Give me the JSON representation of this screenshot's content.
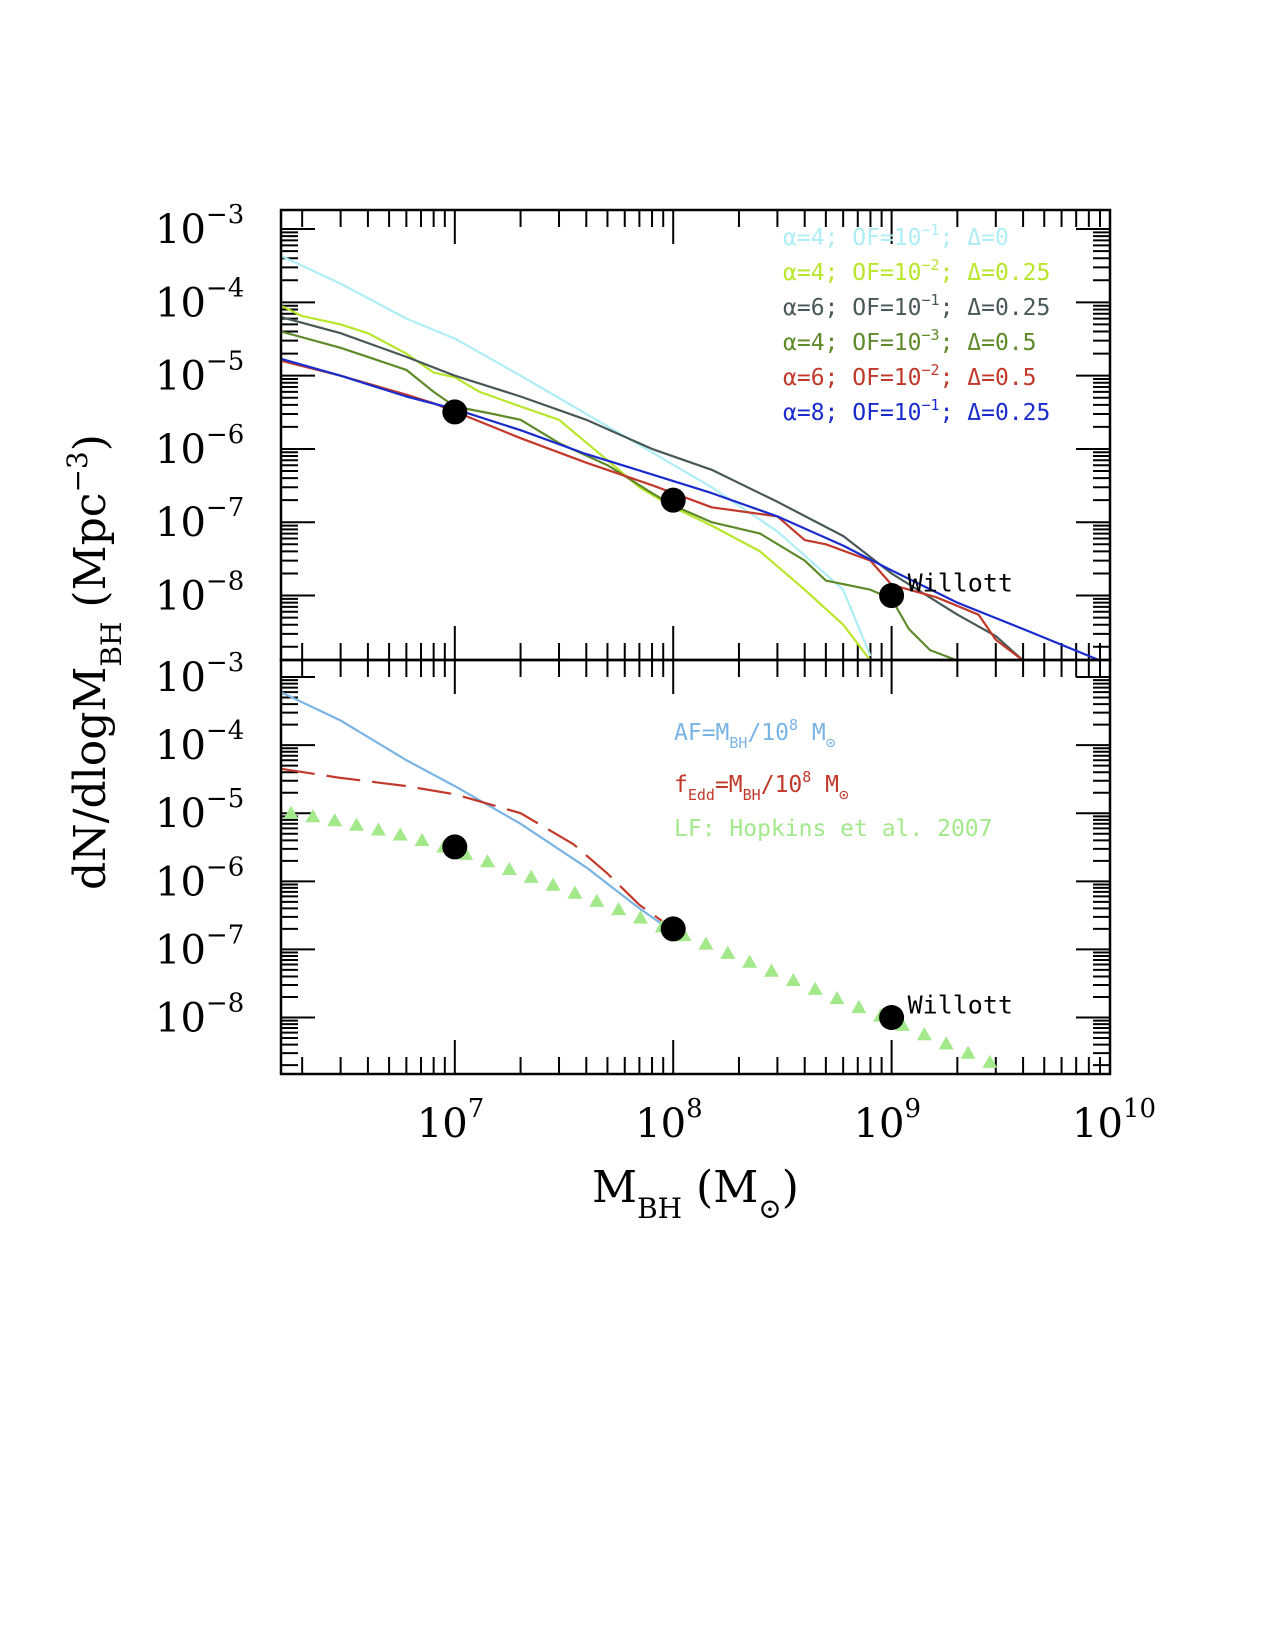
{
  "chart_data": {
    "type": "line",
    "xlabel": "M_BH (M⊙)",
    "ylabel": "dN/dlogM_BH (Mpc^-3)",
    "x_scale": "log",
    "y_scale": "log",
    "xlim": [
      1600000,
      10000000000
    ],
    "x_tick_labels": [
      {
        "base": "10",
        "exp": "7",
        "value": 10000000
      },
      {
        "base": "10",
        "exp": "8",
        "value": 100000000
      },
      {
        "base": "10",
        "exp": "9",
        "value": 1000000000
      },
      {
        "base": "10",
        "exp": "10",
        "value": 10000000000
      }
    ],
    "panels": [
      {
        "name": "top",
        "ylim": [
          1.32e-09,
          0.00182
        ],
        "y_tick_labels": [
          {
            "base": "10",
            "exp": "−3",
            "value": 0.001
          },
          {
            "base": "10",
            "exp": "−4",
            "value": 0.0001
          },
          {
            "base": "10",
            "exp": "−5",
            "value": 1e-05
          },
          {
            "base": "10",
            "exp": "−6",
            "value": 1e-06
          },
          {
            "base": "10",
            "exp": "−7",
            "value": 1e-07
          },
          {
            "base": "10",
            "exp": "−8",
            "value": 1e-08
          }
        ],
        "series": [
          {
            "name": "α=4; OF=10⁻¹; Δ=0",
            "color": "#aeeef4",
            "style": "solid",
            "x": [
              1600000,
              3000000,
              6000000,
              10000000,
              20000000,
              40000000,
              80000000,
              150000000,
              300000000,
              600000000,
              800000000
            ],
            "y": [
              0.00043,
              0.00018,
              6e-05,
              3.2e-05,
              1e-05,
              3e-06,
              9e-07,
              3e-07,
              7.5e-08,
              1.2e-08,
              1.5e-09
            ]
          },
          {
            "name": "α=4; OF=10⁻²; Δ=0.25",
            "color": "#b7e62a",
            "style": "solid",
            "x": [
              1600000,
              2000000,
              3000000,
              4000000,
              6000000,
              8000000,
              10000000,
              13000000,
              20000000,
              30000000,
              50000000,
              70000000,
              100000000,
              150000000,
              250000000,
              400000000,
              600000000,
              800000000
            ],
            "y": [
              9e-05,
              6.5e-05,
              5e-05,
              3.8e-05,
              2e-05,
              1.1e-05,
              9.5e-06,
              6e-06,
              3.8e-06,
              2.5e-06,
              7e-07,
              3e-07,
              1.6e-07,
              9e-08,
              4e-08,
              1.2e-08,
              4e-09,
              1.3e-09
            ]
          },
          {
            "name": "α=6; OF=10⁻¹; Δ=0.25",
            "color": "#485858",
            "style": "solid",
            "x": [
              1600000,
              3000000,
              6000000,
              10000000,
              20000000,
              40000000,
              80000000,
              150000000,
              300000000,
              600000000,
              1000000000,
              2000000000,
              3000000000,
              4000000000
            ],
            "y": [
              6.3e-05,
              3.8e-05,
              1.8e-05,
              1e-05,
              5.2e-06,
              2.5e-06,
              1e-06,
              5.2e-07,
              1.9e-07,
              6.5e-08,
              2e-08,
              5.5e-09,
              2.8e-09,
              1.3e-09
            ]
          },
          {
            "name": "α=4; OF=10⁻³; Δ=0.5",
            "color": "#5e8a2a",
            "style": "solid",
            "x": [
              1600000,
              3000000,
              6000000,
              8000000,
              10000000,
              15000000,
              20000000,
              30000000,
              50000000,
              80000000,
              100000000,
              150000000,
              250000000,
              400000000,
              500000000,
              800000000,
              1000000000,
              1200000000,
              1500000000,
              2000000000
            ],
            "y": [
              4e-05,
              2.4e-05,
              1.2e-05,
              6e-06,
              3.8e-06,
              3e-06,
              2.5e-06,
              1.2e-06,
              6e-07,
              2.5e-07,
              1.7e-07,
              1e-07,
              7e-08,
              3e-08,
              1.6e-08,
              1.2e-08,
              9e-09,
              3.5e-09,
              1.8e-09,
              1.3e-09
            ]
          },
          {
            "name": "α=6; OF=10⁻²; Δ=0.5",
            "color": "#c0392b",
            "style": "solid",
            "x": [
              1600000,
              3000000,
              6000000,
              8000000,
              12000000,
              20000000,
              40000000,
              80000000,
              150000000,
              300000000,
              400000000,
              500000000,
              800000000,
              1000000000,
              1600000000,
              2500000000,
              3000000000,
              4000000000
            ],
            "y": [
              1.6e-05,
              1e-05,
              5.5e-06,
              4.2e-06,
              2.6e-06,
              1.4e-06,
              6.5e-07,
              3.2e-07,
              1.6e-07,
              1.2e-07,
              5.7e-08,
              5e-08,
              3e-08,
              1.4e-08,
              9.5e-09,
              5.5e-09,
              2.5e-09,
              1.3e-09
            ]
          },
          {
            "name": "α=8; OF=10⁻¹; Δ=0.25",
            "color": "#1a2ccc",
            "style": "solid",
            "x": [
              1600000,
              3000000,
              6000000,
              10000000,
              20000000,
              40000000,
              80000000,
              150000000,
              300000000,
              600000000,
              1000000000,
              2000000000,
              4000000000,
              9000000000
            ],
            "y": [
              1.7e-05,
              1e-05,
              5.2e-06,
              3.5e-06,
              1.8e-06,
              8.5e-07,
              4.5e-07,
              2.5e-07,
              1.2e-07,
              4.8e-08,
              2.2e-08,
              8e-09,
              3.5e-09,
              1.3e-09
            ]
          }
        ],
        "points": {
          "x": [
            10000000,
            100000000,
            1000000000
          ],
          "y": [
            3.2e-06,
            2e-07,
            1e-08
          ],
          "label": "Willott"
        }
      },
      {
        "name": "bottom",
        "ylim": [
          1.48e-09,
          0.00178
        ],
        "y_tick_labels": [
          {
            "base": "10",
            "exp": "−3",
            "value": 0.001
          },
          {
            "base": "10",
            "exp": "−4",
            "value": 0.0001
          },
          {
            "base": "10",
            "exp": "−5",
            "value": 1e-05
          },
          {
            "base": "10",
            "exp": "−6",
            "value": 1e-06
          },
          {
            "base": "10",
            "exp": "−7",
            "value": 1e-07
          },
          {
            "base": "10",
            "exp": "−8",
            "value": 1e-08
          }
        ],
        "legend": [
          {
            "text_parts": [
              "AF=M",
              "BH",
              "/10",
              "8",
              " M",
              "⊙"
            ],
            "color": "#79b4e4"
          },
          {
            "text_parts": [
              "f",
              "Edd",
              "=M",
              "BH",
              "/10",
              "8",
              " M",
              "⊙"
            ],
            "color": "#c0392b"
          },
          {
            "text_parts": [
              "LF: Hopkins et al. 2007"
            ],
            "color": "#a3e88a"
          }
        ],
        "series": [
          {
            "name": "AF=M_BH/10^8 M⊙",
            "color": "#79b4e4",
            "style": "solid",
            "x": [
              1600000,
              3000000,
              6000000,
              10000000,
              20000000,
              40000000,
              70000000,
              100000000
            ],
            "y": [
              0.0006,
              0.00023,
              6e-05,
              2.5e-05,
              7e-06,
              1.6e-06,
              4e-07,
              1.8e-07
            ]
          },
          {
            "name": "f_Edd=M_BH/10^8 M⊙",
            "color": "#c0392b",
            "style": "dashed",
            "x": [
              1600000,
              3000000,
              6000000,
              10000000,
              20000000,
              35000000,
              50000000,
              70000000,
              100000000
            ],
            "y": [
              4.5e-05,
              3.3e-05,
              2.5e-05,
              1.9e-05,
              1e-05,
              3.5e-06,
              1.3e-06,
              4.5e-07,
              2e-07
            ]
          },
          {
            "name": "LF: Hopkins et al. 2007",
            "color": "#a3e88a",
            "style": "triangles",
            "x": [
              1778279,
              2238721,
              2818383,
              3548134,
              4466836,
              5623413,
              7079458,
              8912509,
              11220185,
              14125375,
              17782794,
              22387211,
              28183829,
              35481339,
              44668359,
              56234133,
              70794578,
              89125094,
              112201845,
              141253754,
              177827941,
              223872114,
              281838293,
              354813389,
              446683592,
              562341325,
              707945784,
              891250938,
              1122018454,
              1412537545,
              1778279410,
              2238721139,
              2818382931
            ],
            "y": [
              1e-05,
              8.9e-06,
              7.8e-06,
              6.7e-06,
              5.7e-06,
              4.8e-06,
              4e-06,
              3.2e-06,
              2.5e-06,
              1.95e-06,
              1.5e-06,
              1.15e-06,
              8.8e-07,
              6.7e-07,
              5.1e-07,
              3.85e-07,
              2.9e-07,
              2.15e-07,
              1.6e-07,
              1.2e-07,
              8.8e-08,
              6.5e-08,
              4.8e-08,
              3.5e-08,
              2.6e-08,
              1.9e-08,
              1.4e-08,
              1.05e-08,
              7.7e-09,
              5.6e-09,
              4.1e-09,
              3e-09,
              2.2e-09
            ]
          }
        ],
        "points": {
          "x": [
            10000000,
            100000000,
            1000000000
          ],
          "y": [
            3.2e-06,
            2e-07,
            1e-08
          ],
          "label": "Willott"
        }
      }
    ],
    "top_legend": [
      {
        "parts": [
          "α=4;",
          "OF=10",
          "−1",
          ";",
          "Δ=0"
        ],
        "color": "#aeeef4"
      },
      {
        "parts": [
          "α=4;",
          "OF=10",
          "−2",
          ";",
          "Δ=0.25"
        ],
        "color": "#b7e62a"
      },
      {
        "parts": [
          "α=6;",
          "OF=10",
          "−1",
          ";",
          "Δ=0.25"
        ],
        "color": "#485858"
      },
      {
        "parts": [
          "α=4;",
          "OF=10",
          "−3",
          ";",
          "Δ=0.5"
        ],
        "color": "#5e8a2a"
      },
      {
        "parts": [
          "α=6;",
          "OF=10",
          "−2",
          ";",
          "Δ=0.5"
        ],
        "color": "#c0392b"
      },
      {
        "parts": [
          "α=8;",
          "OF=10",
          "−1",
          ";",
          "Δ=0.25"
        ],
        "color": "#1a2ccc"
      }
    ],
    "axis_titles": {
      "x": {
        "main": "M",
        "sub": "BH",
        "unit_open": "(M",
        "unit_sub": "⊙",
        "unit_close": ")"
      },
      "y": {
        "main": "dN/dlogM",
        "sub": "BH",
        "unit_open": "(Mpc",
        "unit_sup": "−3",
        "unit_close": ")"
      }
    }
  }
}
